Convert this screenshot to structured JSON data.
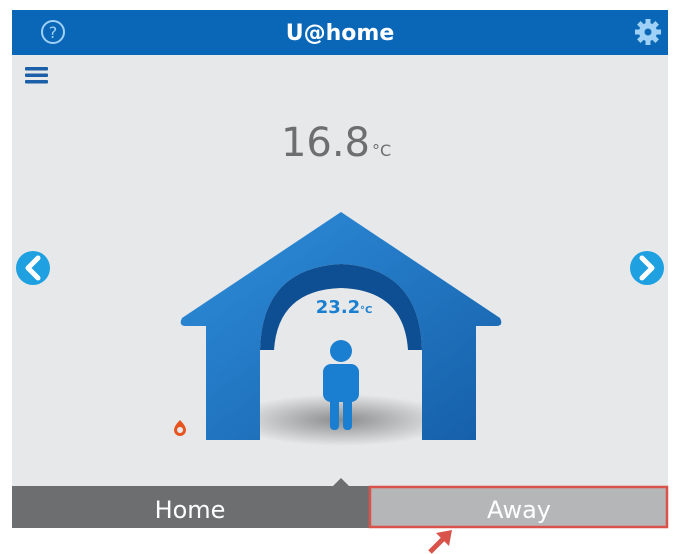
{
  "header": {
    "title": "U@home",
    "help_icon": "?"
  },
  "main": {
    "room_temperature": 16.8,
    "room_unit": "°C",
    "house_temperature": 23.2,
    "house_unit": "°C"
  },
  "tabs": [
    "Home",
    "Away"
  ]
}
